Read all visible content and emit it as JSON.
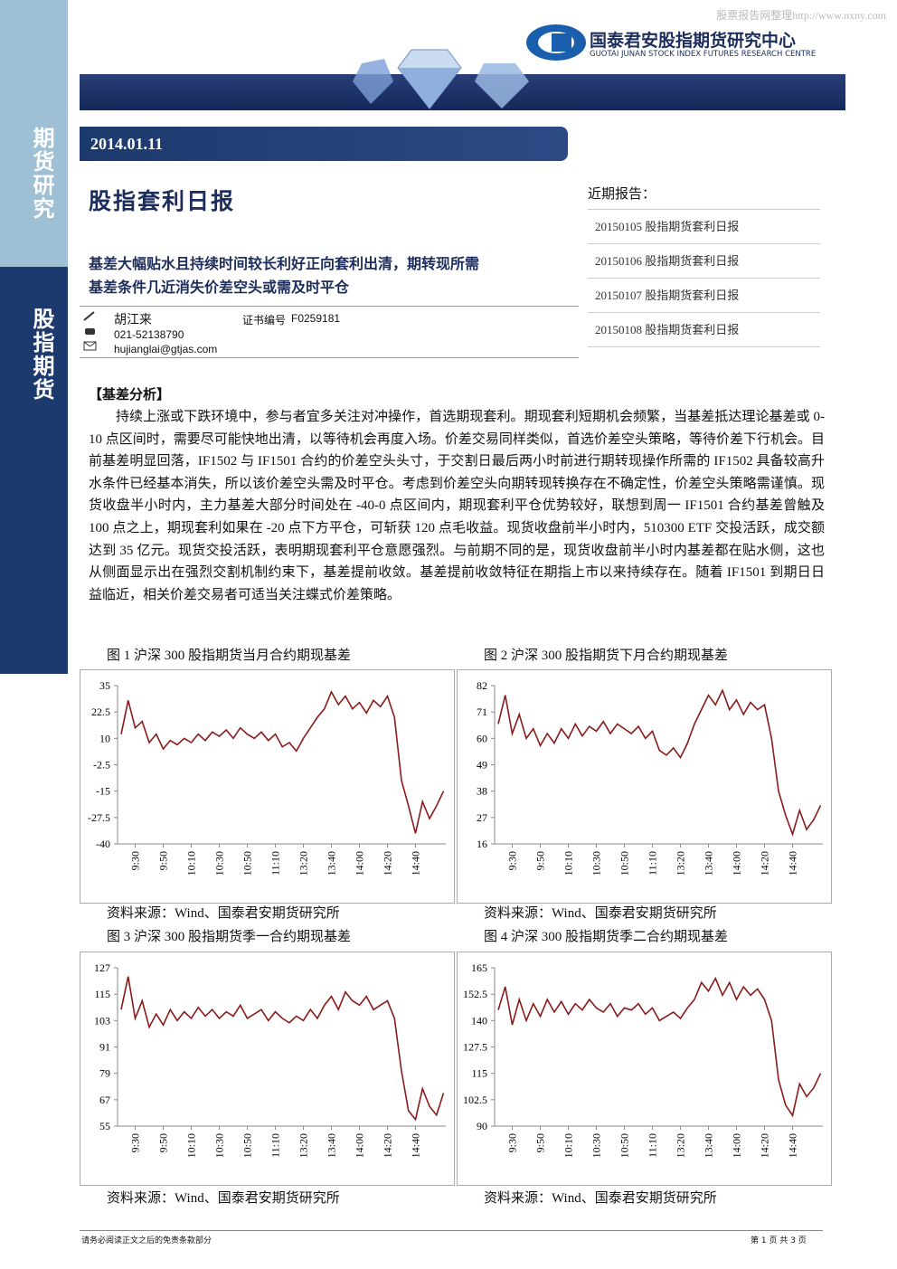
{
  "watermark": "股票报告网整理http://www.nxny.com",
  "header": {
    "company_cn": "国泰君安股指期货研究中心",
    "company_en": "GUOTAI JUNAN STOCK INDEX FUTURES RESEARCH CENTRE"
  },
  "sidebar": [
    "期货研究",
    "股指期货"
  ],
  "date": "2014.01.11",
  "title": "股指套利日报",
  "subtitle_lines": [
    "基差大幅贴水且持续时间较长利好正向套利出清，期转现所需",
    "基差条件几近消失价差空头或需及时平仓"
  ],
  "author": {
    "name": "胡江来",
    "cert_label": "证书编号",
    "cert": "F0259181",
    "phone": "021-52138790",
    "email": "hujianglai@gtjas.com"
  },
  "recent": {
    "heading": "近期报告：",
    "items": [
      "20150105 股指期货套利日报",
      "20150106 股指期货套利日报",
      "20150107 股指期货套利日报",
      "20150108 股指期货套利日报"
    ]
  },
  "section_heading": "【基差分析】",
  "body": "持续上涨或下跌环境中，参与者宜多关注对冲操作，首选期现套利。期现套利短期机会频繁，当基差抵达理论基差或 0-10 点区间时，需要尽可能快地出清，以等待机会再度入场。价差交易同样类似，首选价差空头策略，等待价差下行机会。目前基差明显回落，IF1502 与 IF1501 合约的价差空头头寸，于交割日最后两小时前进行期转现操作所需的 IF1502 具备较高升水条件已经基本消失，所以该价差空头需及时平仓。考虑到价差空头向期转现转换存在不确定性，价差空头策略需谨慎。现货收盘半小时内，主力基差大部分时间处在 -40-0 点区间内，期现套利平仓优势较好，联想到周一 IF1501 合约基差曾触及 100 点之上，期现套利如果在 -20 点下方平仓，可斩获 120 点毛收益。现货收盘前半小时内，510300 ETF 交投活跃，成交额达到 35 亿元。现货交投活跃，表明期现套利平仓意愿强烈。与前期不同的是，现货收盘前半小时内基差都在贴水侧，这也从侧面显示出在强烈交割机制约束下，基差提前收敛。基差提前收敛特征在期指上市以来持续存在。随着 IF1501 到期日日益临近，相关价差交易者可适当关注蝶式价差策略。",
  "chart_data": [
    {
      "type": "line",
      "title": "图 1 沪深 300 股指期货当月合约期现基差",
      "source": "资料来源：Wind、国泰君安期货研究所",
      "color": "#8b1a1a",
      "categories": [
        null,
        null,
        "9:30",
        null,
        null,
        null,
        "9:50",
        null,
        null,
        null,
        "10:10",
        null,
        null,
        null,
        "10:30",
        null,
        null,
        null,
        "10:50",
        null,
        null,
        null,
        "11:10",
        null,
        null,
        null,
        "13:20",
        null,
        null,
        null,
        "13:40",
        null,
        null,
        null,
        "14:00",
        null,
        null,
        null,
        "14:20",
        null,
        null,
        null,
        "14:40",
        null,
        null,
        null,
        null
      ],
      "values": [
        12,
        28,
        15,
        18,
        8,
        12,
        5,
        9,
        7,
        10,
        8,
        12,
        9,
        13,
        11,
        14,
        10,
        15,
        12,
        10,
        13,
        9,
        12,
        6,
        8,
        4,
        10,
        15,
        20,
        24,
        32,
        26,
        30,
        24,
        27,
        22,
        28,
        25,
        30,
        20,
        -10,
        -22,
        -35,
        -20,
        -28,
        -22,
        -15
      ],
      "ylim": [
        -40,
        35
      ],
      "yticks": [
        35,
        22.5,
        10,
        -2.5,
        -15,
        -27.5,
        -40
      ]
    },
    {
      "type": "line",
      "title": "图 2 沪深 300 股指期货下月合约期现基差",
      "source": "资料来源：Wind、国泰君安期货研究所",
      "color": "#8b1a1a",
      "categories": [
        null,
        null,
        "9:30",
        null,
        null,
        null,
        "9:50",
        null,
        null,
        null,
        "10:10",
        null,
        null,
        null,
        "10:30",
        null,
        null,
        null,
        "10:50",
        null,
        null,
        null,
        "11:10",
        null,
        null,
        null,
        "13:20",
        null,
        null,
        null,
        "13:40",
        null,
        null,
        null,
        "14:00",
        null,
        null,
        null,
        "14:20",
        null,
        null,
        null,
        "14:40",
        null,
        null,
        null,
        null
      ],
      "values": [
        66,
        78,
        62,
        70,
        60,
        64,
        57,
        62,
        58,
        64,
        60,
        66,
        61,
        65,
        63,
        67,
        62,
        66,
        64,
        62,
        65,
        60,
        63,
        55,
        53,
        56,
        52,
        58,
        66,
        72,
        78,
        74,
        80,
        72,
        76,
        70,
        75,
        72,
        74,
        60,
        38,
        28,
        20,
        30,
        22,
        26,
        32
      ],
      "ylim": [
        16,
        82
      ],
      "yticks": [
        82,
        71,
        60,
        49,
        38,
        27,
        16
      ]
    },
    {
      "type": "line",
      "title": "图 3 沪深 300 股指期货季一合约期现基差",
      "source": "资料来源：Wind、国泰君安期货研究所",
      "color": "#8b1a1a",
      "categories": [
        null,
        null,
        "9:30",
        null,
        null,
        null,
        "9:50",
        null,
        null,
        null,
        "10:10",
        null,
        null,
        null,
        "10:30",
        null,
        null,
        null,
        "10:50",
        null,
        null,
        null,
        "11:10",
        null,
        null,
        null,
        "13:20",
        null,
        null,
        null,
        "13:40",
        null,
        null,
        null,
        "14:00",
        null,
        null,
        null,
        "14:20",
        null,
        null,
        null,
        "14:40",
        null,
        null,
        null,
        null
      ],
      "values": [
        108,
        123,
        104,
        112,
        100,
        106,
        101,
        108,
        103,
        107,
        104,
        109,
        105,
        108,
        104,
        107,
        105,
        110,
        104,
        106,
        108,
        103,
        107,
        104,
        102,
        105,
        103,
        108,
        104,
        110,
        114,
        108,
        116,
        112,
        110,
        114,
        108,
        110,
        112,
        104,
        80,
        62,
        58,
        72,
        64,
        60,
        70
      ],
      "ylim": [
        55,
        127
      ],
      "yticks": [
        127,
        115,
        103,
        91,
        79,
        67,
        55
      ]
    },
    {
      "type": "line",
      "title": "图 4 沪深 300 股指期货季二合约期现基差",
      "source": "资料来源：Wind、国泰君安期货研究所",
      "color": "#8b1a1a",
      "categories": [
        null,
        null,
        "9:30",
        null,
        null,
        null,
        "9:50",
        null,
        null,
        null,
        "10:10",
        null,
        null,
        null,
        "10:30",
        null,
        null,
        null,
        "10:50",
        null,
        null,
        null,
        "11:10",
        null,
        null,
        null,
        "13:20",
        null,
        null,
        null,
        "13:40",
        null,
        null,
        null,
        "14:00",
        null,
        null,
        null,
        "14:20",
        null,
        null,
        null,
        "14:40",
        null,
        null,
        null,
        null
      ],
      "values": [
        145,
        156,
        138,
        150,
        140,
        148,
        142,
        150,
        144,
        149,
        143,
        148,
        145,
        150,
        146,
        144,
        148,
        142,
        146,
        145,
        148,
        143,
        146,
        140,
        142,
        144,
        141,
        146,
        150,
        158,
        154,
        160,
        152,
        158,
        150,
        156,
        152,
        155,
        150,
        140,
        112,
        100,
        95,
        110,
        104,
        108,
        115
      ],
      "ylim": [
        90,
        165
      ],
      "yticks": [
        165,
        152.5,
        140,
        127.5,
        115,
        102.5,
        90
      ]
    }
  ],
  "footer": {
    "left": "请务必阅读正文之后的免责条款部分",
    "right": "第 1 页 共 3 页"
  }
}
